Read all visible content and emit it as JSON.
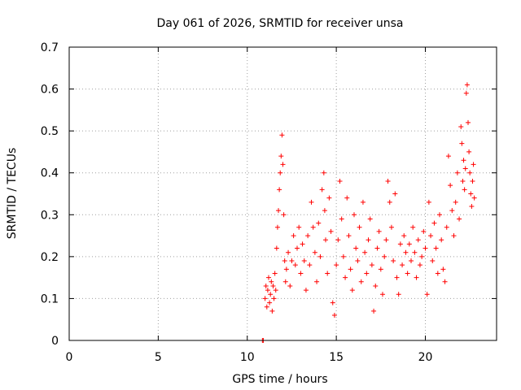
{
  "chart_data": {
    "type": "scatter",
    "title": "Day 061 of 2026, SRMTID for receiver unsa",
    "xlabel": "GPS time / hours",
    "ylabel": "SRMTID / TECUs",
    "xlim": [
      0,
      24
    ],
    "ylim": [
      0,
      0.7
    ],
    "xticks": [
      0,
      5,
      10,
      15,
      20
    ],
    "yticks": [
      0,
      0.1,
      0.2,
      0.3,
      0.4,
      0.5,
      0.6,
      0.7
    ],
    "xtick_labels": [
      "0",
      "5",
      "10",
      "15",
      "20"
    ],
    "ytick_labels": [
      "0",
      "0.1",
      "0.2",
      "0.3",
      "0.4",
      "0.5",
      "0.6",
      "0.7"
    ],
    "grid": true,
    "marker": "+",
    "color": "#ff0000",
    "series": [
      {
        "name": "SRMTID",
        "points": [
          [
            10.85,
            0.0
          ],
          [
            10.9,
            0.0
          ],
          [
            11.0,
            0.1
          ],
          [
            11.05,
            0.13
          ],
          [
            11.1,
            0.08
          ],
          [
            11.15,
            0.12
          ],
          [
            11.2,
            0.15
          ],
          [
            11.25,
            0.09
          ],
          [
            11.3,
            0.11
          ],
          [
            11.35,
            0.14
          ],
          [
            11.4,
            0.07
          ],
          [
            11.45,
            0.13
          ],
          [
            11.5,
            0.1
          ],
          [
            11.55,
            0.16
          ],
          [
            11.6,
            0.12
          ],
          [
            11.65,
            0.22
          ],
          [
            11.7,
            0.27
          ],
          [
            11.75,
            0.31
          ],
          [
            11.8,
            0.36
          ],
          [
            11.85,
            0.4
          ],
          [
            11.9,
            0.44
          ],
          [
            11.95,
            0.49
          ],
          [
            12.0,
            0.42
          ],
          [
            12.05,
            0.3
          ],
          [
            12.1,
            0.19
          ],
          [
            12.15,
            0.14
          ],
          [
            12.2,
            0.17
          ],
          [
            12.3,
            0.21
          ],
          [
            12.4,
            0.13
          ],
          [
            12.5,
            0.19
          ],
          [
            12.6,
            0.25
          ],
          [
            12.7,
            0.18
          ],
          [
            12.8,
            0.22
          ],
          [
            12.9,
            0.27
          ],
          [
            13.0,
            0.16
          ],
          [
            13.1,
            0.23
          ],
          [
            13.2,
            0.19
          ],
          [
            13.3,
            0.12
          ],
          [
            13.4,
            0.25
          ],
          [
            13.5,
            0.18
          ],
          [
            13.6,
            0.33
          ],
          [
            13.7,
            0.27
          ],
          [
            13.8,
            0.21
          ],
          [
            13.9,
            0.14
          ],
          [
            14.0,
            0.28
          ],
          [
            14.1,
            0.2
          ],
          [
            14.2,
            0.36
          ],
          [
            14.3,
            0.4
          ],
          [
            14.35,
            0.31
          ],
          [
            14.4,
            0.24
          ],
          [
            14.5,
            0.16
          ],
          [
            14.6,
            0.34
          ],
          [
            14.7,
            0.26
          ],
          [
            14.8,
            0.09
          ],
          [
            14.9,
            0.06
          ],
          [
            15.0,
            0.18
          ],
          [
            15.1,
            0.24
          ],
          [
            15.2,
            0.38
          ],
          [
            15.3,
            0.29
          ],
          [
            15.4,
            0.2
          ],
          [
            15.5,
            0.15
          ],
          [
            15.6,
            0.34
          ],
          [
            15.7,
            0.25
          ],
          [
            15.8,
            0.17
          ],
          [
            15.9,
            0.12
          ],
          [
            16.0,
            0.3
          ],
          [
            16.1,
            0.22
          ],
          [
            16.2,
            0.19
          ],
          [
            16.3,
            0.27
          ],
          [
            16.4,
            0.14
          ],
          [
            16.5,
            0.33
          ],
          [
            16.6,
            0.21
          ],
          [
            16.7,
            0.16
          ],
          [
            16.8,
            0.24
          ],
          [
            16.9,
            0.29
          ],
          [
            17.0,
            0.18
          ],
          [
            17.1,
            0.07
          ],
          [
            17.2,
            0.13
          ],
          [
            17.3,
            0.22
          ],
          [
            17.4,
            0.26
          ],
          [
            17.5,
            0.17
          ],
          [
            17.6,
            0.11
          ],
          [
            17.7,
            0.2
          ],
          [
            17.8,
            0.24
          ],
          [
            17.9,
            0.38
          ],
          [
            18.0,
            0.33
          ],
          [
            18.1,
            0.27
          ],
          [
            18.2,
            0.19
          ],
          [
            18.3,
            0.35
          ],
          [
            18.4,
            0.15
          ],
          [
            18.5,
            0.11
          ],
          [
            18.6,
            0.23
          ],
          [
            18.7,
            0.18
          ],
          [
            18.8,
            0.25
          ],
          [
            18.9,
            0.21
          ],
          [
            19.0,
            0.16
          ],
          [
            19.1,
            0.23
          ],
          [
            19.2,
            0.19
          ],
          [
            19.3,
            0.27
          ],
          [
            19.4,
            0.21
          ],
          [
            19.5,
            0.15
          ],
          [
            19.6,
            0.24
          ],
          [
            19.7,
            0.18
          ],
          [
            19.8,
            0.2
          ],
          [
            19.9,
            0.26
          ],
          [
            20.0,
            0.22
          ],
          [
            20.1,
            0.11
          ],
          [
            20.2,
            0.33
          ],
          [
            20.3,
            0.25
          ],
          [
            20.4,
            0.19
          ],
          [
            20.5,
            0.28
          ],
          [
            20.6,
            0.22
          ],
          [
            20.7,
            0.16
          ],
          [
            20.8,
            0.3
          ],
          [
            20.9,
            0.24
          ],
          [
            21.0,
            0.17
          ],
          [
            21.1,
            0.14
          ],
          [
            21.2,
            0.27
          ],
          [
            21.3,
            0.44
          ],
          [
            21.4,
            0.37
          ],
          [
            21.5,
            0.31
          ],
          [
            21.6,
            0.25
          ],
          [
            21.7,
            0.33
          ],
          [
            21.8,
            0.4
          ],
          [
            21.9,
            0.29
          ],
          [
            22.0,
            0.51
          ],
          [
            22.05,
            0.47
          ],
          [
            22.1,
            0.38
          ],
          [
            22.15,
            0.43
          ],
          [
            22.2,
            0.36
          ],
          [
            22.25,
            0.41
          ],
          [
            22.3,
            0.59
          ],
          [
            22.35,
            0.61
          ],
          [
            22.4,
            0.52
          ],
          [
            22.45,
            0.45
          ],
          [
            22.5,
            0.4
          ],
          [
            22.55,
            0.35
          ],
          [
            22.6,
            0.32
          ],
          [
            22.65,
            0.38
          ],
          [
            22.7,
            0.42
          ],
          [
            22.75,
            0.34
          ]
        ]
      }
    ]
  }
}
